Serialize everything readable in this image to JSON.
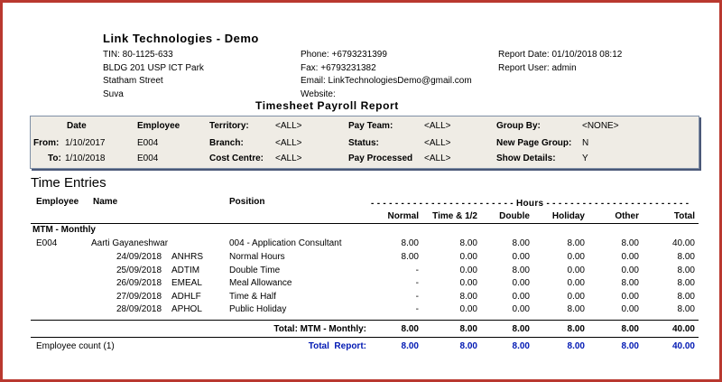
{
  "company": "Link Technologies - Demo",
  "info_left": [
    "TIN: 80-1125-633",
    "BLDG 201 USP ICT Park",
    "Statham Street",
    "Suva"
  ],
  "info_mid": [
    "Phone: +6793231399",
    "Fax: +6793231382",
    "Email: LinkTechnologiesDemo@gmail.com",
    "Website:"
  ],
  "info_right": [
    "Report Date: 01/10/2018 08:12",
    "Report User: admin"
  ],
  "report_title": "Timesheet Payroll Report",
  "filters": {
    "date_label": "Date",
    "employee_label": "Employee",
    "from_label": "From:",
    "from_value": "1/10/2017",
    "from_emp": "E004",
    "to_label": "To:",
    "to_value": "1/10/2018",
    "to_emp": "E004",
    "territory_label": "Territory:",
    "territory_value": "<ALL>",
    "branch_label": "Branch:",
    "branch_value": "<ALL>",
    "cost_label": "Cost Centre:",
    "cost_value": "<ALL>",
    "payteam_label": "Pay Team:",
    "payteam_value": "<ALL>",
    "status_label": "Status:",
    "status_value": "<ALL>",
    "processed_label": "Pay Processed",
    "processed_value": "<ALL>",
    "groupby_label": "Group By:",
    "groupby_value": "<NONE>",
    "newpage_label": "New Page Group:",
    "newpage_value": "N",
    "showdetails_label": "Show Details:",
    "showdetails_value": "Y"
  },
  "section_title": "Time Entries",
  "columns": {
    "employee": "Employee",
    "name": "Name",
    "position": "Position",
    "hours_band": "- - - - - - - - - - - - - - - - - - - - - - - - Hours - - - - - - - - - - - - - - - - - - - - - - - -",
    "normal": "Normal",
    "time_half": "Time & 1/2",
    "double": "Double",
    "holiday": "Holiday",
    "other": "Other",
    "total": "Total"
  },
  "group": "MTM - Monthly",
  "employee_row": {
    "code": "E004",
    "name": "Aarti Gayaneshwar",
    "position": "004 - Application Consultant",
    "normal": "8.00",
    "time_half": "8.00",
    "double": "8.00",
    "holiday": "8.00",
    "other": "8.00",
    "total": "40.00"
  },
  "entries": [
    {
      "date": "24/09/2018",
      "code": "ANHRS",
      "desc": "Normal Hours",
      "normal": "8.00",
      "time_half": "0.00",
      "double": "0.00",
      "holiday": "0.00",
      "other": "0.00",
      "total": "8.00"
    },
    {
      "date": "25/09/2018",
      "code": "ADTIM",
      "desc": "Double Time",
      "normal": "-",
      "time_half": "0.00",
      "double": "8.00",
      "holiday": "0.00",
      "other": "0.00",
      "total": "8.00"
    },
    {
      "date": "26/09/2018",
      "code": "EMEAL",
      "desc": "Meal Allowance",
      "normal": "-",
      "time_half": "0.00",
      "double": "0.00",
      "holiday": "0.00",
      "other": "8.00",
      "total": "8.00"
    },
    {
      "date": "27/09/2018",
      "code": "ADHLF",
      "desc": "Time & Half",
      "normal": "-",
      "time_half": "8.00",
      "double": "0.00",
      "holiday": "0.00",
      "other": "0.00",
      "total": "8.00"
    },
    {
      "date": "28/09/2018",
      "code": "APHOL",
      "desc": "Public Holiday",
      "normal": "-",
      "time_half": "0.00",
      "double": "0.00",
      "holiday": "8.00",
      "other": "0.00",
      "total": "8.00"
    }
  ],
  "group_total": {
    "label": "Total: MTM - Monthly:",
    "normal": "8.00",
    "time_half": "8.00",
    "double": "8.00",
    "holiday": "8.00",
    "other": "8.00",
    "total": "40.00"
  },
  "report_total": {
    "count": "Employee count (1)",
    "label": "Total  Report:",
    "normal": "8.00",
    "time_half": "8.00",
    "double": "8.00",
    "holiday": "8.00",
    "other": "8.00",
    "total": "40.00"
  },
  "colors": {
    "border": "#b9382f",
    "filter_bg": "#efece5",
    "total_blue": "#0018b3"
  }
}
